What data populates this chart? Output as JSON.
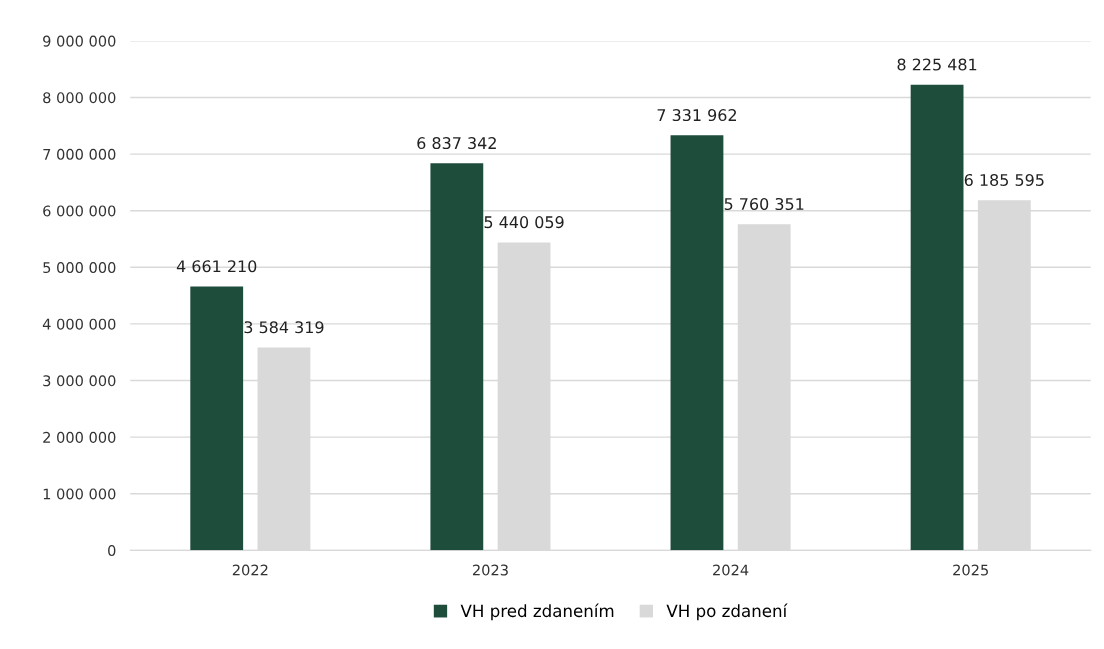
{
  "chart_data": {
    "type": "bar",
    "categories": [
      "2022",
      "2023",
      "2024",
      "2025"
    ],
    "series": [
      {
        "name": "VH pred zdanením",
        "color": "#1e4d3c",
        "values": [
          4661210,
          6837342,
          7331962,
          8225481
        ],
        "value_labels": [
          "4 661 210",
          "6 837 342",
          "7 331 962",
          "8 225 481"
        ]
      },
      {
        "name": "VH po zdanení",
        "color": "#d9d9d9",
        "values": [
          3584319,
          5440059,
          5760351,
          6185595
        ],
        "value_labels": [
          "3 584 319",
          "5 440 059",
          "5 760 351",
          "6 185 595"
        ]
      }
    ],
    "ylim": [
      0,
      9000000
    ],
    "yticks": [
      {
        "value": 0,
        "label": "0"
      },
      {
        "value": 1000000,
        "label": "1 000 000"
      },
      {
        "value": 2000000,
        "label": "2 000 000"
      },
      {
        "value": 3000000,
        "label": "3 000 000"
      },
      {
        "value": 4000000,
        "label": "4 000 000"
      },
      {
        "value": 5000000,
        "label": "5 000 000"
      },
      {
        "value": 6000000,
        "label": "6 000 000"
      },
      {
        "value": 7000000,
        "label": "7 000 000"
      },
      {
        "value": 8000000,
        "label": "8 000 000"
      },
      {
        "value": 9000000,
        "label": "9 000 000"
      }
    ],
    "grid": "y",
    "legend": "bottom"
  }
}
